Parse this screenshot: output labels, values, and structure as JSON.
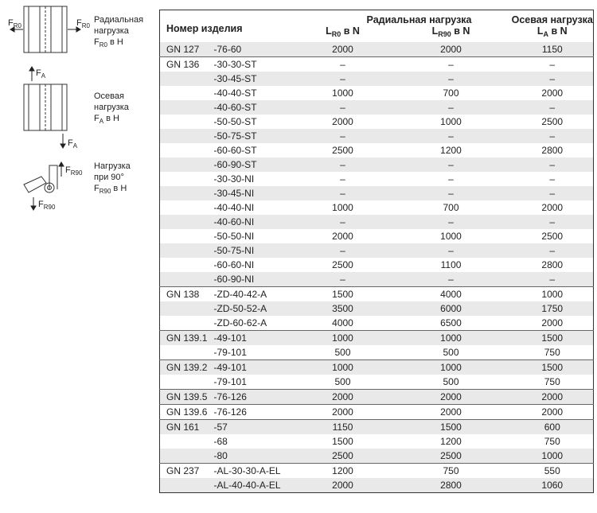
{
  "legend": [
    {
      "arrow_label": {
        "main": "F",
        "sub": "R0"
      },
      "lines": [
        "Радиальная",
        "нагрузка"
      ],
      "symbol": {
        "main": "F",
        "sub": "R0"
      },
      "unit": "в Н"
    },
    {
      "arrow_label": {
        "main": "F",
        "sub": "A"
      },
      "lines": [
        "Осевая",
        "нагрузка"
      ],
      "symbol": {
        "main": "F",
        "sub": "A"
      },
      "unit": "в Н"
    },
    {
      "arrow_label": {
        "main": "F",
        "sub": "R90"
      },
      "lines": [
        "Нагрузка",
        "при 90°"
      ],
      "symbol": {
        "main": "F",
        "sub": "R90"
      },
      "unit": "в Н"
    }
  ],
  "table": {
    "header": {
      "item": "Номер изделия",
      "radial": "Радиальная нагрузка",
      "axial": "Осевая нагрузка",
      "columns": [
        {
          "main": "L",
          "sub": "R0",
          "unit": "в N"
        },
        {
          "main": "L",
          "sub": "R90",
          "unit": "в N"
        },
        {
          "main": "L",
          "sub": "A",
          "unit": "в N"
        }
      ]
    },
    "groups": [
      {
        "name": "GN 127",
        "rows": [
          [
            "-76-60",
            2000,
            2000,
            1150
          ]
        ]
      },
      {
        "name": "GN 136",
        "rows": [
          [
            "-30-30-ST",
            "–",
            "–",
            "–"
          ],
          [
            "-30-45-ST",
            "–",
            "–",
            "–"
          ],
          [
            "-40-40-ST",
            1000,
            700,
            2000
          ],
          [
            "-40-60-ST",
            "–",
            "–",
            "–"
          ],
          [
            "-50-50-ST",
            2000,
            1000,
            2500
          ],
          [
            "-50-75-ST",
            "–",
            "–",
            "–"
          ],
          [
            "-60-60-ST",
            2500,
            1200,
            2800
          ],
          [
            "-60-90-ST",
            "–",
            "–",
            "–"
          ],
          [
            "-30-30-NI",
            "–",
            "–",
            "–"
          ],
          [
            "-30-45-NI",
            "–",
            "–",
            "–"
          ],
          [
            "-40-40-NI",
            1000,
            700,
            2000
          ],
          [
            "-40-60-NI",
            "–",
            "–",
            "–"
          ],
          [
            "-50-50-NI",
            2000,
            1000,
            2500
          ],
          [
            "-50-75-NI",
            "–",
            "–",
            "–"
          ],
          [
            "-60-60-NI",
            2500,
            1100,
            2800
          ],
          [
            "-60-90-NI",
            "–",
            "–",
            "–"
          ]
        ]
      },
      {
        "name": "GN 138",
        "rows": [
          [
            "-ZD-40-42-A",
            1500,
            4000,
            1000
          ],
          [
            "-ZD-50-52-A",
            3500,
            6000,
            1750
          ],
          [
            "-ZD-60-62-A",
            4000,
            6500,
            2000
          ]
        ]
      },
      {
        "name": "GN 139.1",
        "rows": [
          [
            "-49-101",
            1000,
            1000,
            1500
          ],
          [
            "-79-101",
            500,
            500,
            750
          ]
        ]
      },
      {
        "name": "GN 139.2",
        "rows": [
          [
            "-49-101",
            1000,
            1000,
            1500
          ],
          [
            "-79-101",
            500,
            500,
            750
          ]
        ]
      },
      {
        "name": "GN 139.5",
        "rows": [
          [
            "-76-126",
            2000,
            2000,
            2000
          ]
        ]
      },
      {
        "name": "GN 139.6",
        "rows": [
          [
            "-76-126",
            2000,
            2000,
            2000
          ]
        ]
      },
      {
        "name": "GN 161",
        "rows": [
          [
            "-57",
            1150,
            1500,
            600
          ],
          [
            "-68",
            1500,
            1200,
            750
          ],
          [
            "-80",
            2500,
            2500,
            1000
          ]
        ]
      },
      {
        "name": "GN 237",
        "rows": [
          [
            "-AL-30-30-A-EL",
            1200,
            750,
            550
          ],
          [
            "-AL-40-40-A-EL",
            2000,
            2800,
            1060
          ]
        ]
      }
    ]
  }
}
